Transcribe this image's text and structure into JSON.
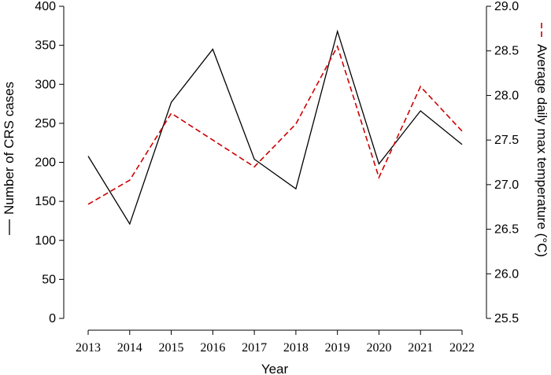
{
  "chart_data": {
    "type": "line",
    "x": [
      "2013",
      "2014",
      "2015",
      "2016",
      "2017",
      "2018",
      "2019",
      "2020",
      "2021",
      "2022"
    ],
    "xlabel": "Year",
    "ylabel_left": "Number of CRS cases",
    "ylabel_right": "Average daily max temperature (°C)",
    "ylim_left": [
      0,
      400
    ],
    "ylim_right": [
      25.5,
      29.0
    ],
    "yticks_left": [
      "0",
      "50",
      "100",
      "150",
      "200",
      "250",
      "300",
      "350",
      "400"
    ],
    "yticks_right": [
      "25.5",
      "26.0",
      "26.5",
      "27.0",
      "27.5",
      "28.0",
      "28.5",
      "29.0"
    ],
    "series": [
      {
        "name": "Number of CRS cases",
        "axis": "left",
        "color": "#000000",
        "values": [
          208,
          121,
          277,
          345,
          204,
          166,
          368,
          198,
          266,
          223
        ]
      },
      {
        "name": "Average daily max temperature (°C)",
        "axis": "right",
        "color": "#cc0000",
        "values": [
          26.78,
          27.05,
          27.8,
          27.5,
          27.2,
          27.68,
          28.55,
          27.08,
          28.1,
          27.6
        ]
      }
    ]
  }
}
